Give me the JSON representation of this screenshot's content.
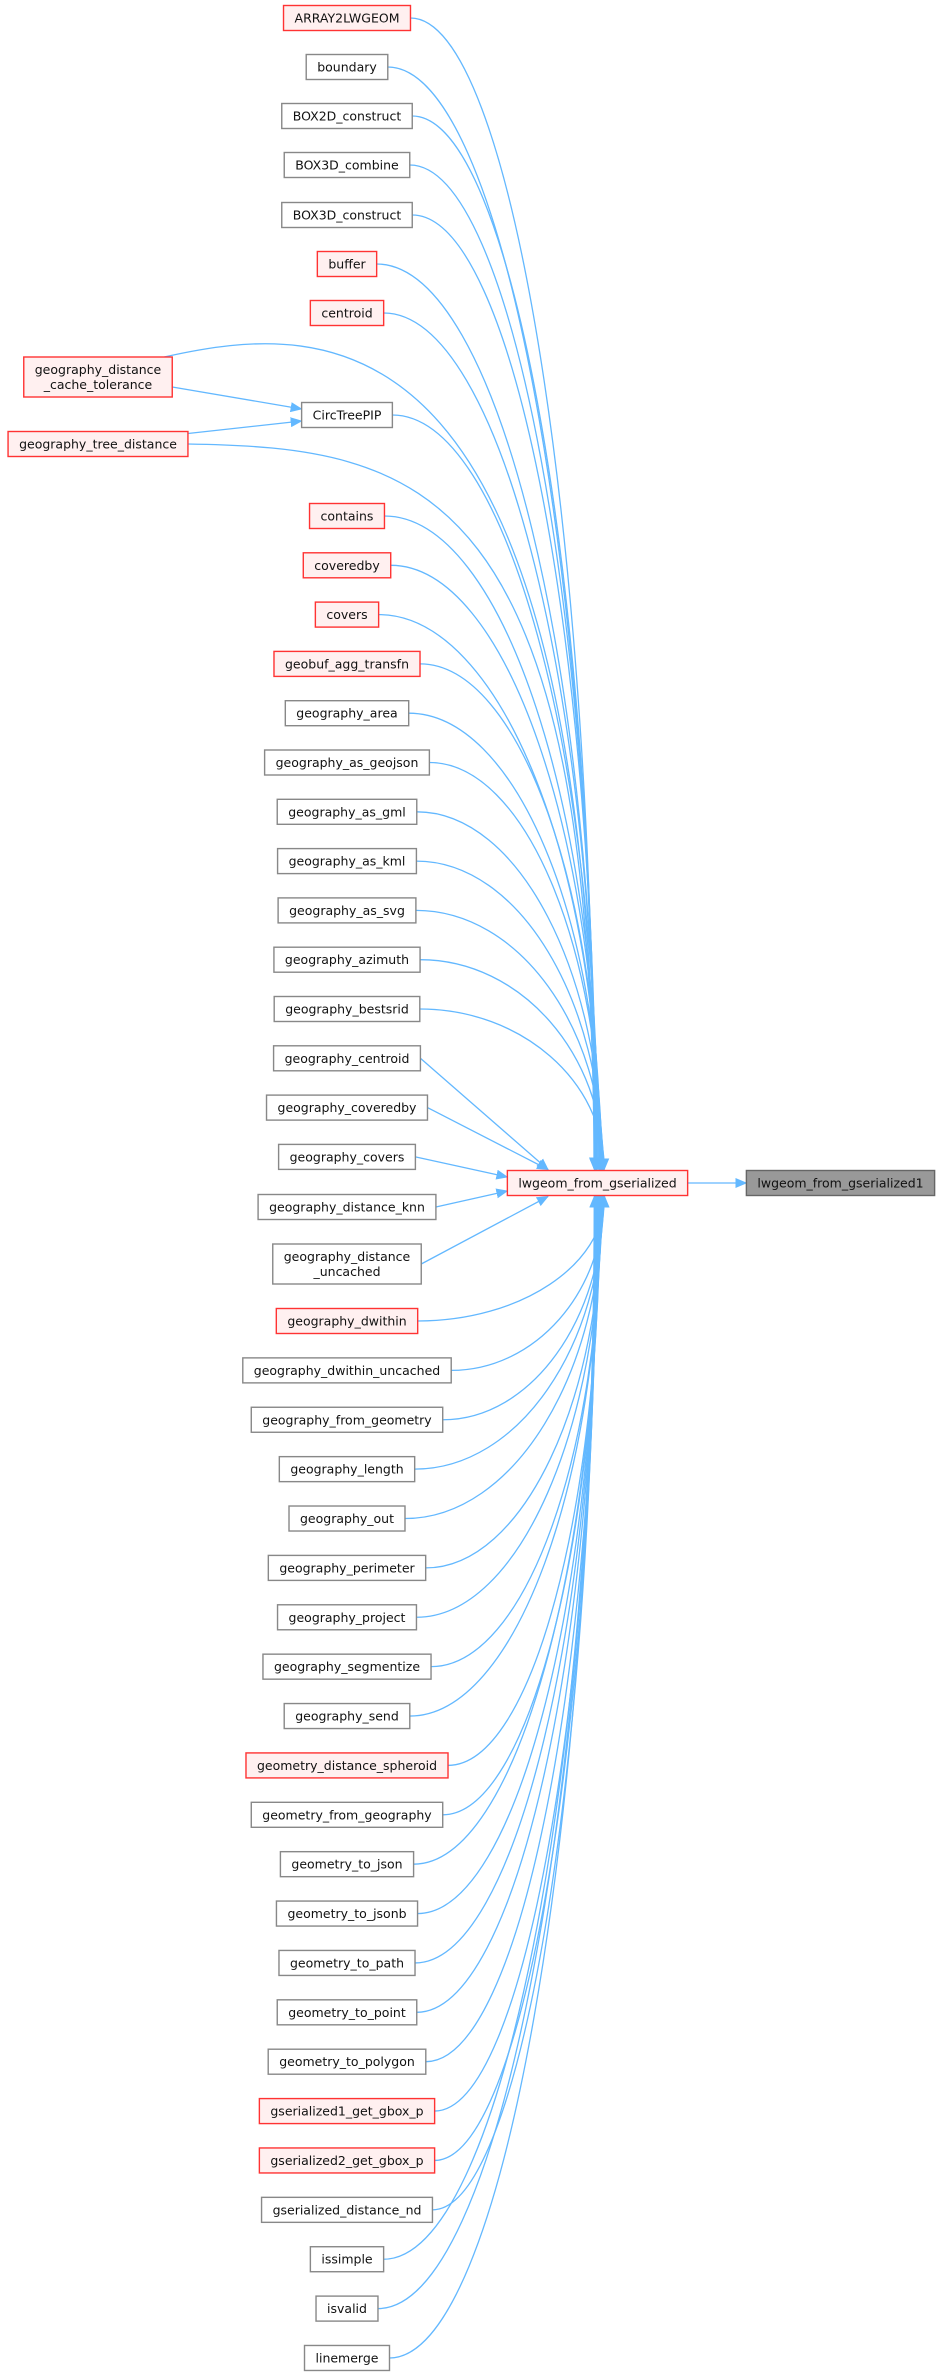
{
  "colors": {
    "edge": "#63b8ff",
    "red_node_fill": "#fff0f0",
    "red_node_stroke": "#ff3333",
    "gray_node_fill": "#ffffff",
    "gray_node_stroke": "#888888",
    "target_fill": "#999999",
    "target_stroke": "#666666"
  },
  "target": {
    "label": "lwgeom_from_gserialized1"
  },
  "center": {
    "label": "lwgeom_from_gserialized",
    "red": true
  },
  "callers": [
    {
      "label": "ARRAY2LWGEOM",
      "red": true
    },
    {
      "label": "boundary",
      "red": false
    },
    {
      "label": "BOX2D_construct",
      "red": false
    },
    {
      "label": "BOX3D_combine",
      "red": false
    },
    {
      "label": "BOX3D_construct",
      "red": false
    },
    {
      "label": "buffer",
      "red": true
    },
    {
      "label": "centroid",
      "red": true
    },
    {
      "label": "geography_distance\n_cache_tolerance",
      "red": true
    },
    {
      "label": "CircTreePIP",
      "red": false
    },
    {
      "label": "geography_tree_distance",
      "red": true
    },
    {
      "label": "contains",
      "red": true
    },
    {
      "label": "coveredby",
      "red": true
    },
    {
      "label": "covers",
      "red": true
    },
    {
      "label": "geobuf_agg_transfn",
      "red": true
    },
    {
      "label": "geography_area",
      "red": false
    },
    {
      "label": "geography_as_geojson",
      "red": false
    },
    {
      "label": "geography_as_gml",
      "red": false
    },
    {
      "label": "geography_as_kml",
      "red": false
    },
    {
      "label": "geography_as_svg",
      "red": false
    },
    {
      "label": "geography_azimuth",
      "red": false
    },
    {
      "label": "geography_bestsrid",
      "red": false
    },
    {
      "label": "geography_centroid",
      "red": false
    },
    {
      "label": "geography_coveredby",
      "red": false
    },
    {
      "label": "geography_covers",
      "red": false
    },
    {
      "label": "geography_distance_knn",
      "red": false
    },
    {
      "label": "geography_distance\n_uncached",
      "red": false
    },
    {
      "label": "geography_dwithin",
      "red": true
    },
    {
      "label": "geography_dwithin_uncached",
      "red": false
    },
    {
      "label": "geography_from_geometry",
      "red": false
    },
    {
      "label": "geography_length",
      "red": false
    },
    {
      "label": "geography_out",
      "red": false
    },
    {
      "label": "geography_perimeter",
      "red": false
    },
    {
      "label": "geography_project",
      "red": false
    },
    {
      "label": "geography_segmentize",
      "red": false
    },
    {
      "label": "geography_send",
      "red": false
    },
    {
      "label": "geometry_distance_spheroid",
      "red": true
    },
    {
      "label": "geometry_from_geography",
      "red": false
    },
    {
      "label": "geometry_to_json",
      "red": false
    },
    {
      "label": "geometry_to_jsonb",
      "red": false
    },
    {
      "label": "geometry_to_path",
      "red": false
    },
    {
      "label": "geometry_to_point",
      "red": false
    },
    {
      "label": "geometry_to_polygon",
      "red": false
    },
    {
      "label": "gserialized1_get_gbox_p",
      "red": true
    },
    {
      "label": "gserialized2_get_gbox_p",
      "red": true
    },
    {
      "label": "gserialized_distance_nd",
      "red": false
    },
    {
      "label": "issimple",
      "red": false
    },
    {
      "label": "isvalid",
      "red": false
    },
    {
      "label": "linemerge",
      "red": false
    }
  ]
}
